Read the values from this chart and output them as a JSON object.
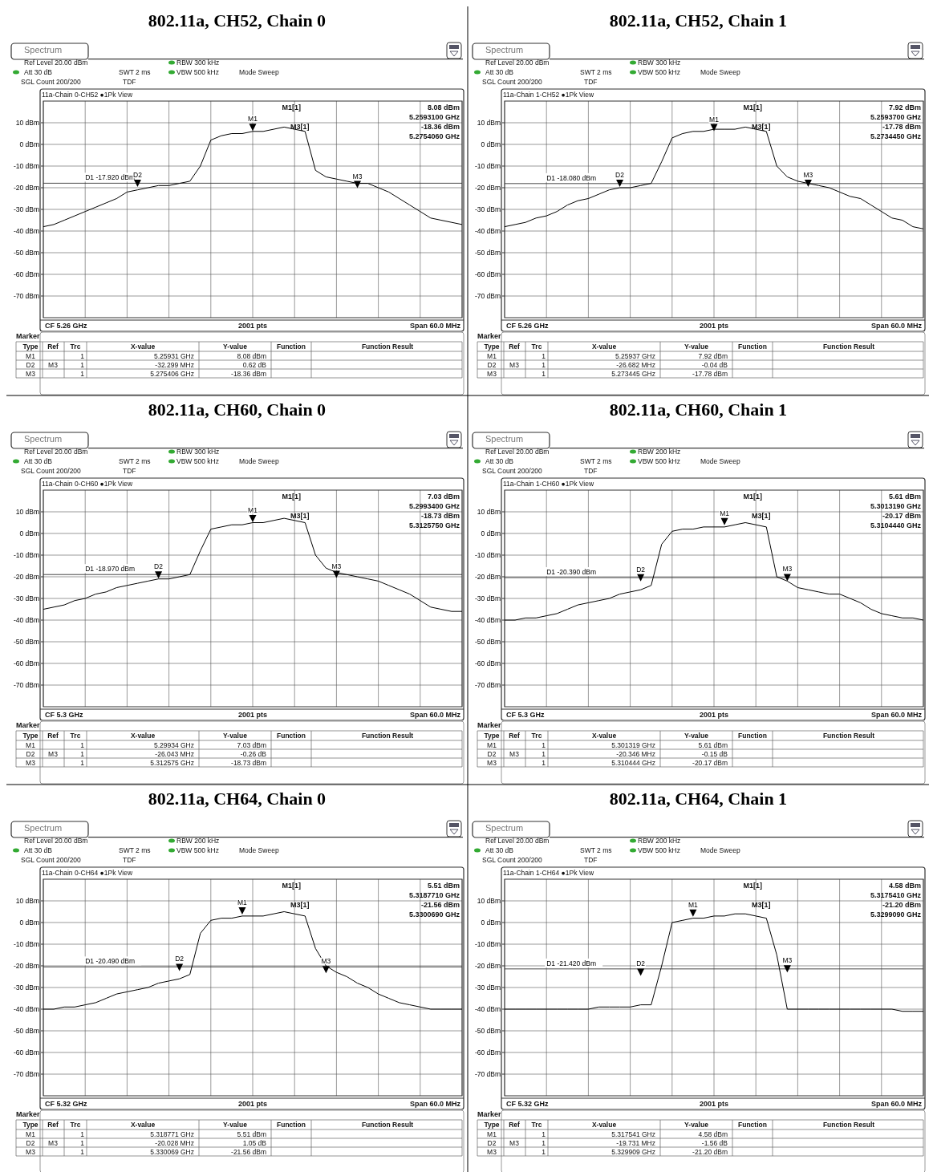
{
  "chart_data": [
    {
      "type": "line",
      "title": "802.11a, CH52, Chain 0",
      "categories": [
        null,
        null,
        null,
        null,
        null,
        null,
        null,
        null,
        null,
        null,
        null,
        null,
        null,
        null,
        null,
        null,
        null,
        null,
        null,
        null,
        null,
        null,
        null,
        null,
        null,
        null,
        null,
        null,
        null,
        null,
        null,
        null,
        null,
        null,
        null,
        null,
        null,
        null,
        null,
        null,
        null
      ],
      "ylim": [
        -80,
        20
      ],
      "yticks": [
        {
          "value": 10,
          "label": "10 dBm"
        },
        {
          "value": 0,
          "label": "0 dBm"
        },
        {
          "value": -10,
          "label": "-10 dBm"
        },
        {
          "value": -20,
          "label": "-20 dBm"
        },
        {
          "value": -30,
          "label": "-30 dBm"
        },
        {
          "value": -40,
          "label": "-40 dBm"
        },
        {
          "value": -50,
          "label": "-50 dBm"
        },
        {
          "value": -60,
          "label": "-60 dBm"
        },
        {
          "value": -70,
          "label": "-70 dBm"
        }
      ],
      "grid": true,
      "series": [
        {
          "color": "#000000",
          "values": [
            -38,
            -37,
            -35,
            -33,
            -31,
            -29,
            -27,
            -25,
            -22,
            -21,
            -20,
            -19,
            -19,
            -18,
            -17,
            -10,
            2,
            4,
            5,
            5,
            6,
            6,
            7,
            8,
            7,
            6,
            -12,
            -15,
            -16,
            -17,
            -18,
            -18,
            -20,
            -22,
            -25,
            -28,
            -31,
            -34,
            -35,
            -36,
            -37
          ]
        },
        {
          "type": "scatter",
          "color": "#000000",
          "marker": "triangle",
          "values": [
            null,
            null,
            null,
            null,
            null,
            null,
            null,
            null,
            null,
            -17.74,
            null,
            null,
            null,
            null,
            null,
            null,
            null,
            null,
            null,
            null,
            8.08,
            null,
            null,
            null,
            null,
            null,
            null,
            null,
            null,
            null,
            -18.36,
            null,
            null,
            null,
            null,
            null,
            null,
            null,
            null,
            null,
            null
          ],
          "value_labels": [
            null,
            null,
            null,
            null,
            null,
            null,
            null,
            null,
            null,
            "D2",
            null,
            null,
            null,
            null,
            null,
            null,
            null,
            null,
            null,
            null,
            "M1",
            null,
            null,
            null,
            null,
            null,
            null,
            null,
            null,
            null,
            "M3",
            null,
            null,
            null,
            null,
            null,
            null,
            null,
            null,
            null,
            null
          ]
        }
      ],
      "ref_lines": [
        {
          "axis": "y",
          "value": -17.92,
          "label": "D1 -17.920 dBm"
        }
      ],
      "annotations": [
        "Spectrum",
        "Ref Level 20.00 dBm",
        "Att 30 dB",
        "SWT 2 ms",
        "RBW 300 kHz",
        "VBW 500 kHz",
        "Mode Sweep",
        "SGL Count 200/200",
        "TDF",
        "11a-Chain 0-CH52 ●1Pk View",
        "M1[1]",
        "8.08 dBm",
        "5.2593100 GHz",
        "M3[1]",
        "-18.36 dBm",
        "5.2754060 GHz",
        "CF 5.26 GHz",
        "2001 pts",
        "Span 60.0 MHz",
        "Marker",
        "Type",
        "Ref",
        "Trc",
        "X-value",
        "Y-value",
        "Function",
        "Function Result",
        "M1",
        "1",
        "5.25931 GHz",
        "8.08 dBm",
        "D2",
        "M3",
        "1",
        "-32.299 MHz",
        "0.62 dB",
        "M3",
        "1",
        "5.275406 GHz",
        "-18.36 dBm"
      ]
    },
    {
      "type": "line",
      "title": "802.11a, CH52, Chain 1",
      "categories": [
        null,
        null,
        null,
        null,
        null,
        null,
        null,
        null,
        null,
        null,
        null,
        null,
        null,
        null,
        null,
        null,
        null,
        null,
        null,
        null,
        null,
        null,
        null,
        null,
        null,
        null,
        null,
        null,
        null,
        null,
        null,
        null,
        null,
        null,
        null,
        null,
        null,
        null,
        null,
        null,
        null
      ],
      "ylim": [
        -80,
        20
      ],
      "yticks": [
        {
          "value": 10,
          "label": "10 dBm"
        },
        {
          "value": 0,
          "label": "0 dBm"
        },
        {
          "value": -10,
          "label": "-10 dBm"
        },
        {
          "value": -20,
          "label": "-20 dBm"
        },
        {
          "value": -30,
          "label": "-30 dBm"
        },
        {
          "value": -40,
          "label": "-40 dBm"
        },
        {
          "value": -50,
          "label": "-50 dBm"
        },
        {
          "value": -60,
          "label": "-60 dBm"
        },
        {
          "value": -70,
          "label": "-70 dBm"
        }
      ],
      "grid": true,
      "series": [
        {
          "color": "#000000",
          "values": [
            -38,
            -37,
            -36,
            -34,
            -33,
            -31,
            -28,
            -26,
            -25,
            -23,
            -21,
            -20,
            -20,
            -19,
            -18,
            -8,
            3,
            5,
            6,
            6,
            7,
            7,
            7,
            8,
            7,
            6,
            -10,
            -15,
            -17,
            -18,
            -19,
            -20,
            -22,
            -24,
            -25,
            -28,
            -31,
            -34,
            -35,
            -38,
            -39
          ]
        },
        {
          "type": "scatter",
          "color": "#000000",
          "marker": "triangle",
          "values": [
            null,
            null,
            null,
            null,
            null,
            null,
            null,
            null,
            null,
            null,
            null,
            -17.82,
            null,
            null,
            null,
            null,
            null,
            null,
            null,
            null,
            7.92,
            null,
            null,
            null,
            null,
            null,
            null,
            null,
            null,
            -17.78,
            null,
            null,
            null,
            null,
            null,
            null,
            null,
            null,
            null,
            null,
            null
          ],
          "value_labels": [
            null,
            null,
            null,
            null,
            null,
            null,
            null,
            null,
            null,
            null,
            null,
            "D2",
            null,
            null,
            null,
            null,
            null,
            null,
            null,
            null,
            "M1",
            null,
            null,
            null,
            null,
            null,
            null,
            null,
            null,
            "M3",
            null,
            null,
            null,
            null,
            null,
            null,
            null,
            null,
            null,
            null,
            null
          ]
        }
      ],
      "ref_lines": [
        {
          "axis": "y",
          "value": -18.08,
          "label": "D1 -18.080 dBm"
        }
      ],
      "annotations": [
        "Spectrum",
        "Ref Level 20.00 dBm",
        "Att 30 dB",
        "SWT 2 ms",
        "RBW 300 kHz",
        "VBW 500 kHz",
        "Mode Sweep",
        "SGL Count 200/200",
        "TDF",
        "11a-Chain 1-CH52 ●1Pk View",
        "M1[1]",
        "7.92 dBm",
        "5.2593700 GHz",
        "M3[1]",
        "-17.78 dBm",
        "5.2734450 GHz",
        "CF 5.26 GHz",
        "2001 pts",
        "Span 60.0 MHz",
        "Marker",
        "Type",
        "Ref",
        "Trc",
        "X-value",
        "Y-value",
        "Function",
        "Function Result",
        "M1",
        "1",
        "5.25937 GHz",
        "7.92 dBm",
        "D2",
        "M3",
        "1",
        "-26.682 MHz",
        "-0.04 dB",
        "M3",
        "1",
        "5.273445 GHz",
        "-17.78 dBm"
      ]
    },
    {
      "type": "line",
      "title": "802.11a, CH60, Chain 0",
      "categories": [
        null,
        null,
        null,
        null,
        null,
        null,
        null,
        null,
        null,
        null,
        null,
        null,
        null,
        null,
        null,
        null,
        null,
        null,
        null,
        null,
        null,
        null,
        null,
        null,
        null,
        null,
        null,
        null,
        null,
        null,
        null,
        null,
        null,
        null,
        null,
        null,
        null,
        null,
        null,
        null,
        null
      ],
      "ylim": [
        -80,
        20
      ],
      "yticks": [
        {
          "value": 10,
          "label": "10 dBm"
        },
        {
          "value": 0,
          "label": "0 dBm"
        },
        {
          "value": -10,
          "label": "-10 dBm"
        },
        {
          "value": -20,
          "label": "-20 dBm"
        },
        {
          "value": -30,
          "label": "-30 dBm"
        },
        {
          "value": -40,
          "label": "-40 dBm"
        },
        {
          "value": -50,
          "label": "-50 dBm"
        },
        {
          "value": -60,
          "label": "-60 dBm"
        },
        {
          "value": -70,
          "label": "-70 dBm"
        }
      ],
      "grid": true,
      "series": [
        {
          "color": "#000000",
          "values": [
            -35,
            -34,
            -33,
            -31,
            -30,
            -28,
            -27,
            -25,
            -24,
            -23,
            -22,
            -21,
            -21,
            -20,
            -19,
            -8,
            2,
            3,
            4,
            4,
            5,
            5,
            6,
            7,
            6,
            5,
            -10,
            -16,
            -18,
            -19,
            -20,
            -21,
            -22,
            -24,
            -26,
            -28,
            -31,
            -34,
            -35,
            -36,
            -36
          ]
        },
        {
          "type": "scatter",
          "color": "#000000",
          "marker": "triangle",
          "values": [
            null,
            null,
            null,
            null,
            null,
            null,
            null,
            null,
            null,
            null,
            null,
            -18.99,
            null,
            null,
            null,
            null,
            null,
            null,
            null,
            null,
            7.03,
            null,
            null,
            null,
            null,
            null,
            null,
            null,
            -18.73,
            null,
            null,
            null,
            null,
            null,
            null,
            null,
            null,
            null,
            null,
            null,
            null
          ],
          "value_labels": [
            null,
            null,
            null,
            null,
            null,
            null,
            null,
            null,
            null,
            null,
            null,
            "D2",
            null,
            null,
            null,
            null,
            null,
            null,
            null,
            null,
            "M1",
            null,
            null,
            null,
            null,
            null,
            null,
            null,
            "M3",
            null,
            null,
            null,
            null,
            null,
            null,
            null,
            null,
            null,
            null,
            null,
            null
          ]
        }
      ],
      "ref_lines": [
        {
          "axis": "y",
          "value": -18.97,
          "label": "D1 -18.970 dBm"
        }
      ],
      "annotations": [
        "Spectrum",
        "Ref Level 20.00 dBm",
        "Att 30 dB",
        "SWT 2 ms",
        "RBW 300 kHz",
        "VBW 500 kHz",
        "Mode Sweep",
        "SGL Count 200/200",
        "TDF",
        "11a-Chain 0-CH60 ●1Pk View",
        "M1[1]",
        "7.03 dBm",
        "5.2993400 GHz",
        "M3[1]",
        "-18.73 dBm",
        "5.3125750 GHz",
        "CF 5.3 GHz",
        "2001 pts",
        "Span 60.0 MHz",
        "Marker",
        "Type",
        "Ref",
        "Trc",
        "X-value",
        "Y-value",
        "Function",
        "Function Result",
        "M1",
        "1",
        "5.29934 GHz",
        "7.03 dBm",
        "D2",
        "M3",
        "1",
        "-26.043 MHz",
        "-0.26 dB",
        "M3",
        "1",
        "5.312575 GHz",
        "-18.73 dBm"
      ]
    },
    {
      "type": "line",
      "title": "802.11a, CH60, Chain 1",
      "categories": [
        null,
        null,
        null,
        null,
        null,
        null,
        null,
        null,
        null,
        null,
        null,
        null,
        null,
        null,
        null,
        null,
        null,
        null,
        null,
        null,
        null,
        null,
        null,
        null,
        null,
        null,
        null,
        null,
        null,
        null,
        null,
        null,
        null,
        null,
        null,
        null,
        null,
        null,
        null,
        null,
        null
      ],
      "ylim": [
        -80,
        20
      ],
      "yticks": [
        {
          "value": 10,
          "label": "10 dBm"
        },
        {
          "value": 0,
          "label": "0 dBm"
        },
        {
          "value": -10,
          "label": "-10 dBm"
        },
        {
          "value": -20,
          "label": "-20 dBm"
        },
        {
          "value": -30,
          "label": "-30 dBm"
        },
        {
          "value": -40,
          "label": "-40 dBm"
        },
        {
          "value": -50,
          "label": "-50 dBm"
        },
        {
          "value": -60,
          "label": "-60 dBm"
        },
        {
          "value": -70,
          "label": "-70 dBm"
        }
      ],
      "grid": true,
      "series": [
        {
          "color": "#000000",
          "values": [
            -40,
            -40,
            -39,
            -39,
            -38,
            -37,
            -35,
            -33,
            -32,
            -31,
            -30,
            -28,
            -27,
            -26,
            -24,
            -5,
            1,
            2,
            2,
            3,
            3,
            3,
            4,
            5,
            4,
            3,
            -20,
            -22,
            -25,
            -26,
            -27,
            -28,
            -28,
            -30,
            -32,
            -35,
            -37,
            -38,
            -39,
            -39,
            -40
          ]
        },
        {
          "type": "scatter",
          "color": "#000000",
          "marker": "triangle",
          "values": [
            null,
            null,
            null,
            null,
            null,
            null,
            null,
            null,
            null,
            null,
            null,
            null,
            null,
            -20.32,
            null,
            null,
            null,
            null,
            null,
            null,
            null,
            5.61,
            null,
            null,
            null,
            null,
            null,
            -20.17,
            null,
            null,
            null,
            null,
            null,
            null,
            null,
            null,
            null,
            null,
            null,
            null,
            null
          ],
          "value_labels": [
            null,
            null,
            null,
            null,
            null,
            null,
            null,
            null,
            null,
            null,
            null,
            null,
            null,
            "D2",
            null,
            null,
            null,
            null,
            null,
            null,
            null,
            "M1",
            null,
            null,
            null,
            null,
            null,
            "M3",
            null,
            null,
            null,
            null,
            null,
            null,
            null,
            null,
            null,
            null,
            null,
            null,
            null
          ]
        }
      ],
      "ref_lines": [
        {
          "axis": "y",
          "value": -20.39,
          "label": "D1 -20.390 dBm"
        }
      ],
      "annotations": [
        "Spectrum",
        "Ref Level 20.00 dBm",
        "Att 30 dB",
        "SWT 2 ms",
        "RBW 200 kHz",
        "VBW 500 kHz",
        "Mode Sweep",
        "SGL Count 200/200",
        "TDF",
        "11a-Chain 1-CH60 ●1Pk View",
        "M1[1]",
        "5.61 dBm",
        "5.3013190 GHz",
        "M3[1]",
        "-20.17 dBm",
        "5.3104440 GHz",
        "CF 5.3 GHz",
        "2001 pts",
        "Span 60.0 MHz",
        "Marker",
        "Type",
        "Ref",
        "Trc",
        "X-value",
        "Y-value",
        "Function",
        "Function Result",
        "M1",
        "1",
        "5.301319 GHz",
        "5.61 dBm",
        "D2",
        "M3",
        "1",
        "-20.346 MHz",
        "-0.15 dB",
        "M3",
        "1",
        "5.310444 GHz",
        "-20.17 dBm"
      ]
    },
    {
      "type": "line",
      "title": "802.11a, CH64, Chain 0",
      "categories": [
        null,
        null,
        null,
        null,
        null,
        null,
        null,
        null,
        null,
        null,
        null,
        null,
        null,
        null,
        null,
        null,
        null,
        null,
        null,
        null,
        null,
        null,
        null,
        null,
        null,
        null,
        null,
        null,
        null,
        null,
        null,
        null,
        null,
        null,
        null,
        null,
        null,
        null,
        null,
        null,
        null
      ],
      "ylim": [
        -80,
        20
      ],
      "yticks": [
        {
          "value": 10,
          "label": "10 dBm"
        },
        {
          "value": 0,
          "label": "0 dBm"
        },
        {
          "value": -10,
          "label": "-10 dBm"
        },
        {
          "value": -20,
          "label": "-20 dBm"
        },
        {
          "value": -30,
          "label": "-30 dBm"
        },
        {
          "value": -40,
          "label": "-40 dBm"
        },
        {
          "value": -50,
          "label": "-50 dBm"
        },
        {
          "value": -60,
          "label": "-60 dBm"
        },
        {
          "value": -70,
          "label": "-70 dBm"
        }
      ],
      "grid": true,
      "series": [
        {
          "color": "#000000",
          "values": [
            -40,
            -40,
            -39,
            -39,
            -38,
            -37,
            -35,
            -33,
            -32,
            -31,
            -30,
            -28,
            -27,
            -26,
            -24,
            -5,
            1,
            2,
            2,
            3,
            3,
            3,
            4,
            5,
            4,
            3,
            -12,
            -20,
            -23,
            -25,
            -28,
            -30,
            -33,
            -35,
            -37,
            -38,
            -39,
            -40,
            -40,
            -40,
            -40
          ]
        },
        {
          "type": "scatter",
          "color": "#000000",
          "marker": "triangle",
          "values": [
            null,
            null,
            null,
            null,
            null,
            null,
            null,
            null,
            null,
            null,
            null,
            null,
            null,
            -20.51,
            null,
            null,
            null,
            null,
            null,
            5.51,
            null,
            null,
            null,
            null,
            null,
            null,
            null,
            -21.56,
            null,
            null,
            null,
            null,
            null,
            null,
            null,
            null,
            null,
            null,
            null,
            null,
            null
          ],
          "value_labels": [
            null,
            null,
            null,
            null,
            null,
            null,
            null,
            null,
            null,
            null,
            null,
            null,
            null,
            "D2",
            null,
            null,
            null,
            null,
            null,
            "M1",
            null,
            null,
            null,
            null,
            null,
            null,
            null,
            "M3",
            null,
            null,
            null,
            null,
            null,
            null,
            null,
            null,
            null,
            null,
            null,
            null,
            null
          ]
        }
      ],
      "ref_lines": [
        {
          "axis": "y",
          "value": -20.49,
          "label": "D1 -20.490 dBm"
        }
      ],
      "annotations": [
        "Spectrum",
        "Ref Level 20.00 dBm",
        "Att 30 dB",
        "SWT 2 ms",
        "RBW 200 kHz",
        "VBW 500 kHz",
        "Mode Sweep",
        "SGL Count 200/200",
        "TDF",
        "11a-Chain 0-CH64 ●1Pk View",
        "M1[1]",
        "5.51 dBm",
        "5.3187710 GHz",
        "M3[1]",
        "-21.56 dBm",
        "5.3300690 GHz",
        "CF 5.32 GHz",
        "2001 pts",
        "Span 60.0 MHz",
        "Marker",
        "Type",
        "Ref",
        "Trc",
        "X-value",
        "Y-value",
        "Function",
        "Function Result",
        "M1",
        "1",
        "5.318771 GHz",
        "5.51 dBm",
        "D2",
        "M3",
        "1",
        "-20.028 MHz",
        "1.05 dB",
        "M3",
        "1",
        "5.330069 GHz",
        "-21.56 dBm"
      ]
    },
    {
      "type": "line",
      "title": "802.11a, CH64, Chain 1",
      "categories": [
        null,
        null,
        null,
        null,
        null,
        null,
        null,
        null,
        null,
        null,
        null,
        null,
        null,
        null,
        null,
        null,
        null,
        null,
        null,
        null,
        null,
        null,
        null,
        null,
        null,
        null,
        null,
        null,
        null,
        null,
        null,
        null,
        null,
        null,
        null,
        null,
        null,
        null,
        null,
        null,
        null
      ],
      "ylim": [
        -80,
        20
      ],
      "yticks": [
        {
          "value": 10,
          "label": "10 dBm"
        },
        {
          "value": 0,
          "label": "0 dBm"
        },
        {
          "value": -10,
          "label": "-10 dBm"
        },
        {
          "value": -20,
          "label": "-20 dBm"
        },
        {
          "value": -30,
          "label": "-30 dBm"
        },
        {
          "value": -40,
          "label": "-40 dBm"
        },
        {
          "value": -50,
          "label": "-50 dBm"
        },
        {
          "value": -60,
          "label": "-60 dBm"
        },
        {
          "value": -70,
          "label": "-70 dBm"
        }
      ],
      "grid": true,
      "series": [
        {
          "color": "#000000",
          "values": [
            -40,
            -40,
            -40,
            -40,
            -40,
            -40,
            -40,
            -40,
            -40,
            -39,
            -39,
            -39,
            -39,
            -38,
            -38,
            -20,
            0,
            1,
            2,
            2,
            3,
            3,
            4,
            4,
            3,
            2,
            -15,
            -40,
            -40,
            -40,
            -40,
            -40,
            -40,
            -40,
            -40,
            -40,
            -40,
            -40,
            -41,
            -41,
            -41
          ]
        },
        {
          "type": "scatter",
          "color": "#000000",
          "marker": "triangle",
          "values": [
            null,
            null,
            null,
            null,
            null,
            null,
            null,
            null,
            null,
            null,
            null,
            null,
            null,
            -22.76,
            null,
            null,
            null,
            null,
            4.58,
            null,
            null,
            null,
            null,
            null,
            null,
            null,
            null,
            -21.2,
            null,
            null,
            null,
            null,
            null,
            null,
            null,
            null,
            null,
            null,
            null,
            null,
            null
          ],
          "value_labels": [
            null,
            null,
            null,
            null,
            null,
            null,
            null,
            null,
            null,
            null,
            null,
            null,
            null,
            "D2",
            null,
            null,
            null,
            null,
            "M1",
            null,
            null,
            null,
            null,
            null,
            null,
            null,
            null,
            "M3",
            null,
            null,
            null,
            null,
            null,
            null,
            null,
            null,
            null,
            null,
            null,
            null,
            null
          ]
        }
      ],
      "ref_lines": [
        {
          "axis": "y",
          "value": -21.42,
          "label": "D1 -21.420 dBm"
        }
      ],
      "annotations": [
        "Spectrum",
        "Ref Level 20.00 dBm",
        "Att 30 dB",
        "SWT 2 ms",
        "RBW 200 kHz",
        "VBW 500 kHz",
        "Mode Sweep",
        "SGL Count 200/200",
        "TDF",
        "11a-Chain 1-CH64 ●1Pk View",
        "M1[1]",
        "4.58 dBm",
        "5.3175410 GHz",
        "M3[1]",
        "-21.20 dBm",
        "5.3299090 GHz",
        "CF 5.32 GHz",
        "2001 pts",
        "Span 60.0 MHz",
        "Marker",
        "Type",
        "Ref",
        "Trc",
        "X-value",
        "Y-value",
        "Function",
        "Function Result",
        "M1",
        "1",
        "5.317541 GHz",
        "4.58 dBm",
        "D2",
        "M3",
        "1",
        "-19.731 MHz",
        "-1.56 dB",
        "M3",
        "1",
        "5.329909 GHz",
        "-21.20 dBm"
      ]
    }
  ]
}
